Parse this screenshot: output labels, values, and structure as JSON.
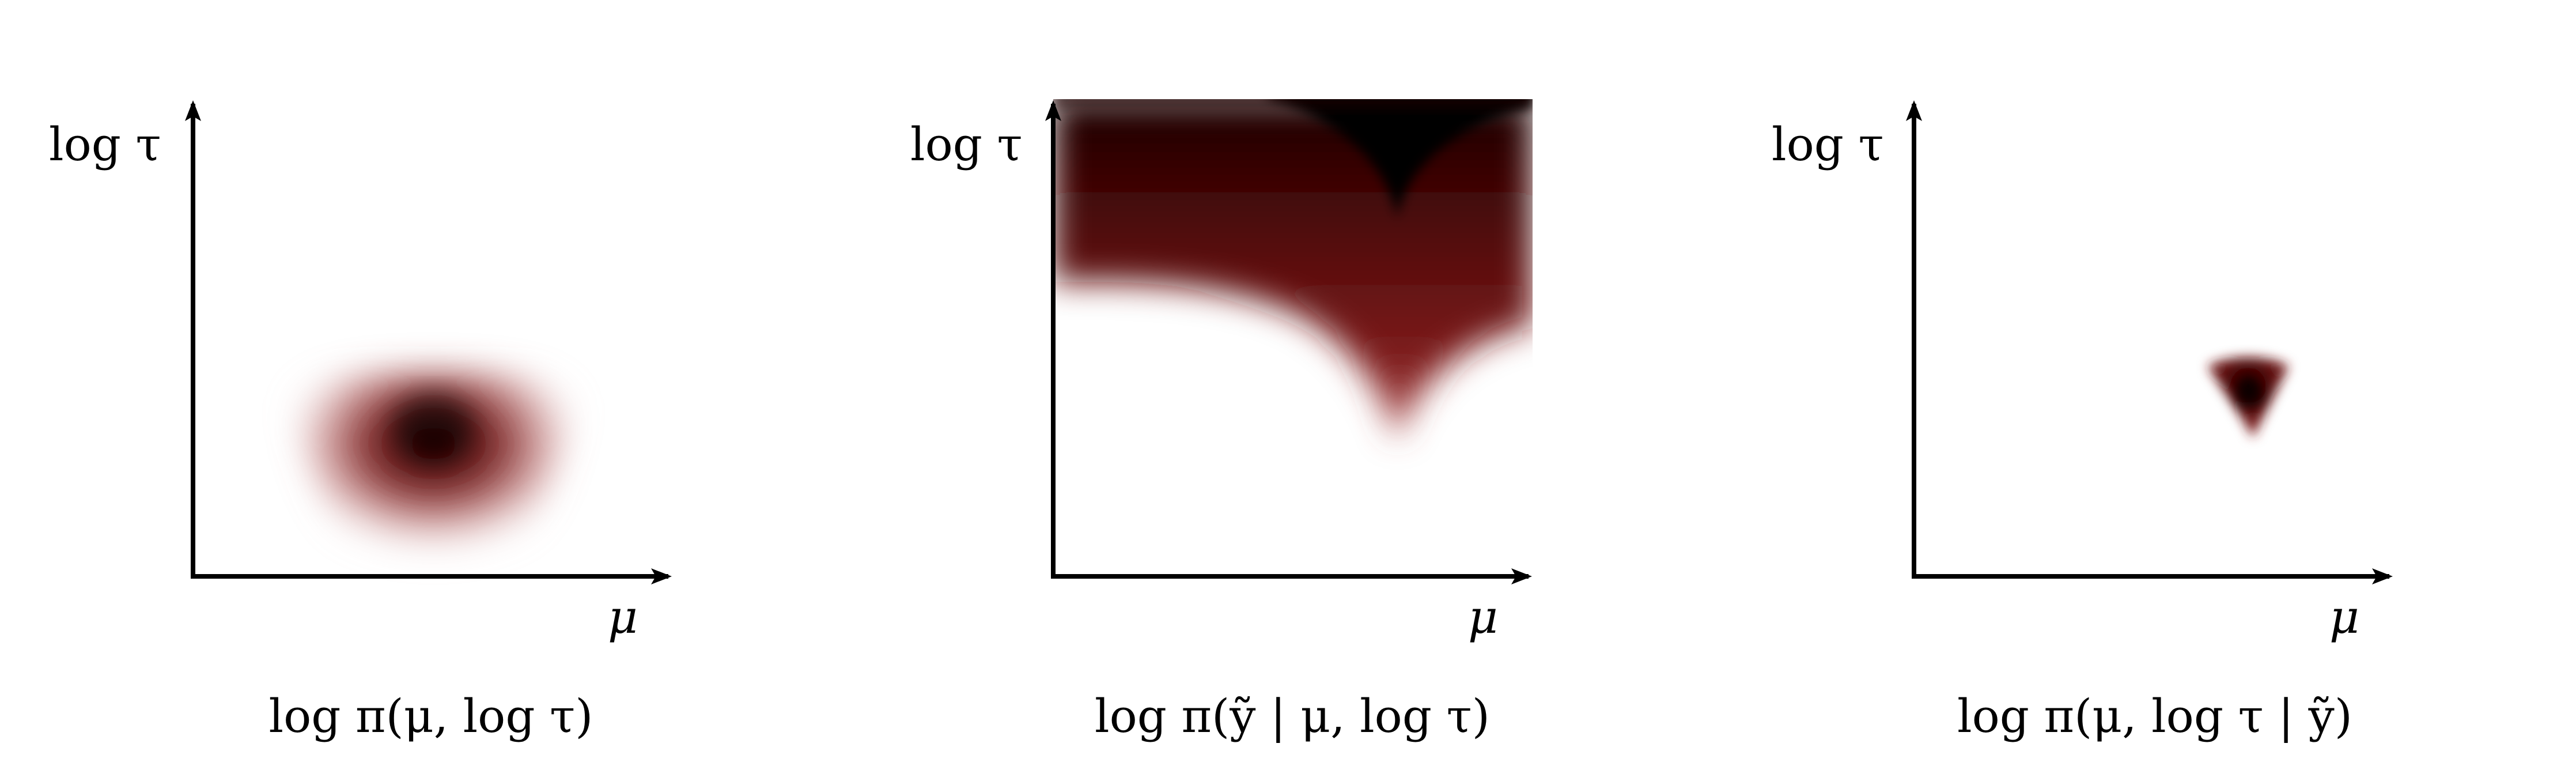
{
  "panels": [
    {
      "id": "prior",
      "y_label": "log τ",
      "x_label": "μ",
      "caption": "log π(μ, log τ)",
      "density_shape": "rounded blob centered right of middle, low",
      "colors": {
        "core": "#000000",
        "mid": "#6b0d0d",
        "edge": "#ffffff"
      }
    },
    {
      "id": "likelihood",
      "y_label": "log τ",
      "x_label": "μ",
      "caption": "log π(ỹ | μ, log τ)",
      "density_shape": "funnel with cusp pointing down, filling top of plot",
      "colors": {
        "core": "#000000",
        "mid": "#6b0d0d",
        "edge": "#ffffff"
      }
    },
    {
      "id": "posterior",
      "y_label": "log τ",
      "x_label": "μ",
      "caption": "log π(μ, log τ | ỹ)",
      "density_shape": "small inverted triangle",
      "colors": {
        "core": "#000000",
        "mid": "#6b0d0d",
        "edge": "#ffffff"
      }
    }
  ]
}
